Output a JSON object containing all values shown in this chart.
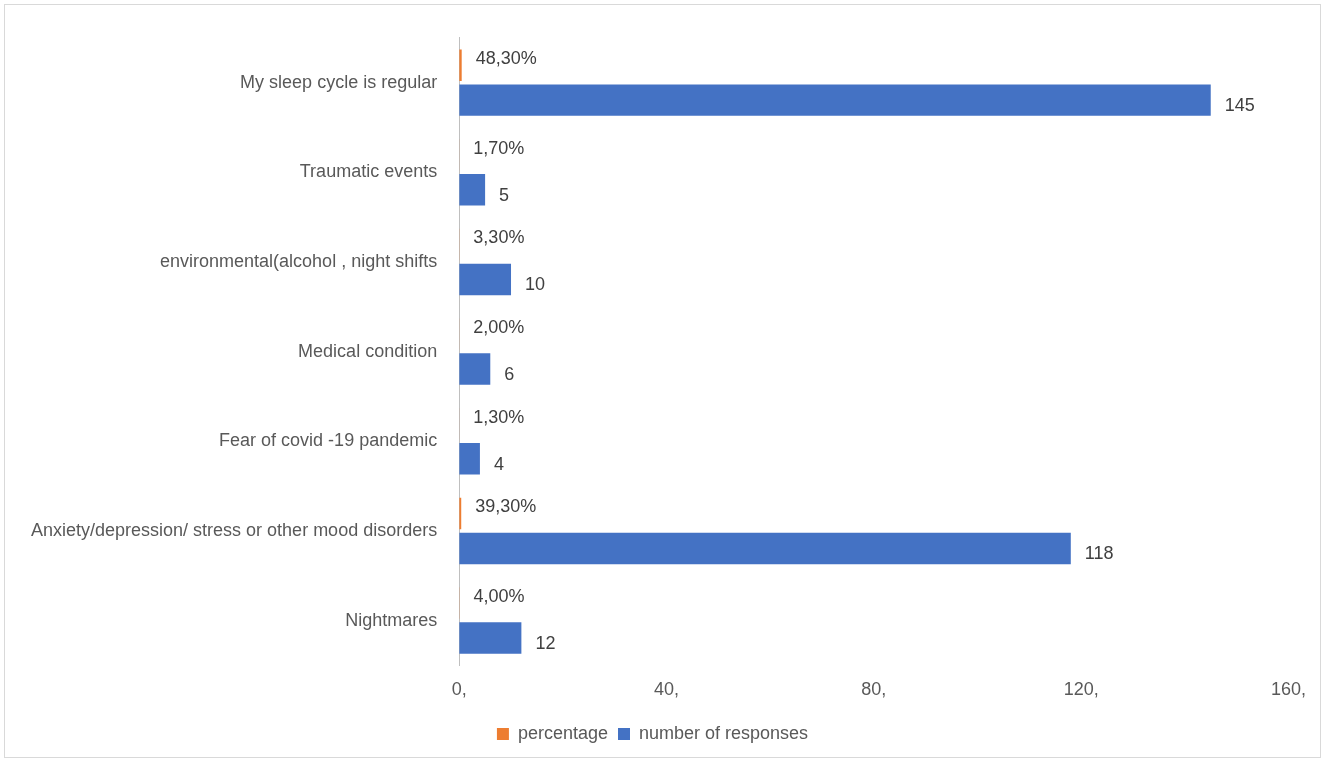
{
  "chart_data": {
    "type": "bar",
    "orientation": "horizontal",
    "categories": [
      "My sleep cycle is regular",
      "Traumatic events",
      "environmental(alcohol , night shifts",
      "Medical condition",
      "Fear of covid -19 pandemic",
      "Anxiety/depression/ stress or other mood disorders",
      "Nightmares"
    ],
    "series": [
      {
        "name": "percentage",
        "color": "#ed7d31",
        "values": [
          0.483,
          0.017,
          0.033,
          0.02,
          0.013,
          0.393,
          0.04
        ],
        "value_labels": [
          "48,30%",
          "1,70%",
          "3,30%",
          "2,00%",
          "1,30%",
          "39,30%",
          "4,00%"
        ]
      },
      {
        "name": "number of responses",
        "color": "#4472c4",
        "values": [
          145,
          5,
          10,
          6,
          4,
          118,
          12
        ],
        "value_labels": [
          "145",
          "5",
          "10",
          "6",
          "4",
          "118",
          "12"
        ]
      }
    ],
    "xlim": [
      0,
      160
    ],
    "xticks": [
      {
        "value": 0,
        "label": "0,"
      },
      {
        "value": 40,
        "label": "40,"
      },
      {
        "value": 80,
        "label": "80,"
      },
      {
        "value": 120,
        "label": "120,"
      },
      {
        "value": 160,
        "label": "160,"
      }
    ],
    "grid": false,
    "legend": "bottom"
  }
}
